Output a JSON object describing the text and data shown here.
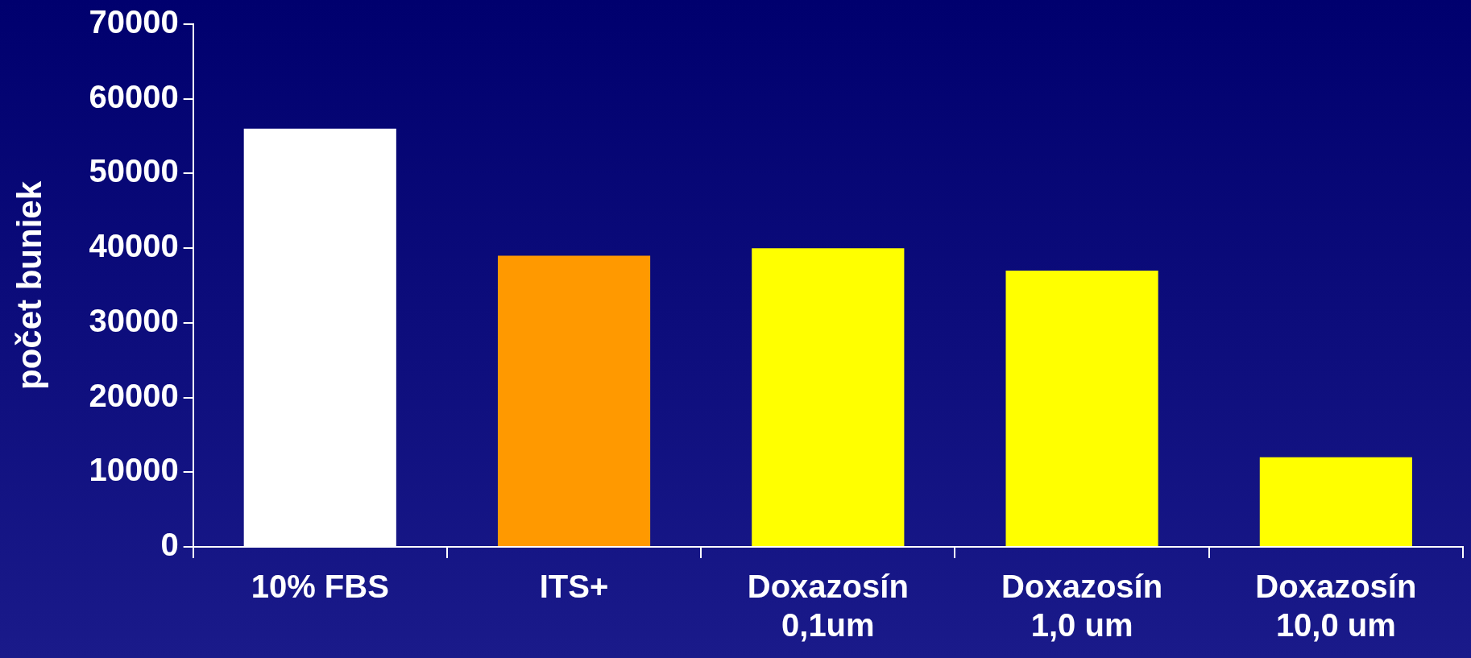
{
  "chart_data": {
    "type": "bar",
    "ylabel": "počet buniek",
    "categories": [
      "10% FBS",
      "ITS+",
      "Doxazosín\n0,1um",
      "Doxazosín\n1,0 um",
      "Doxazosín\n10,0 um"
    ],
    "values": [
      56000,
      39000,
      40000,
      37000,
      12000
    ],
    "colors": [
      "#ffffff",
      "#ff9900",
      "#ffff00",
      "#ffff00",
      "#ffff00"
    ],
    "ylim": [
      0,
      70000
    ],
    "yticks": [
      0,
      10000,
      20000,
      30000,
      40000,
      50000,
      60000,
      70000
    ],
    "grid": false,
    "legend": false
  }
}
